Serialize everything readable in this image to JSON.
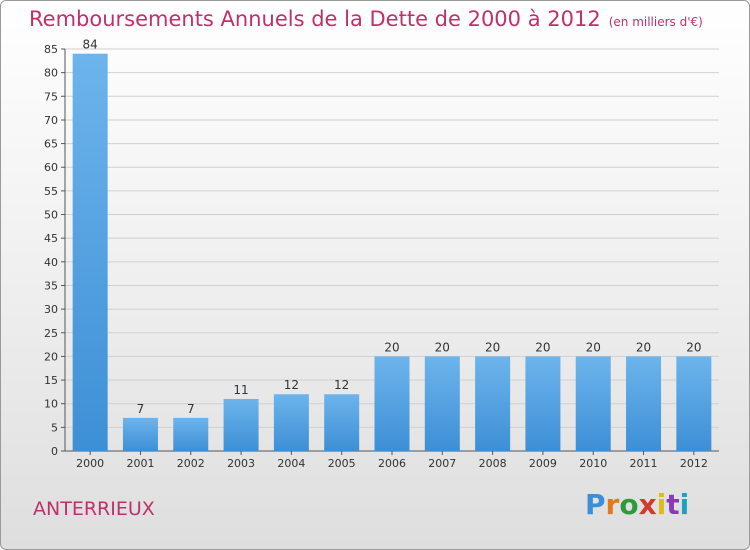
{
  "chart_data": {
    "type": "bar",
    "title": "Remboursements Annuels de la Dette de 2000 à 2012",
    "unit_note": "(en milliers d'€)",
    "categories": [
      "2000",
      "2001",
      "2002",
      "2003",
      "2004",
      "2005",
      "2006",
      "2007",
      "2008",
      "2009",
      "2010",
      "2011",
      "2012"
    ],
    "values": [
      84,
      7,
      7,
      11,
      12,
      12,
      20,
      20,
      20,
      20,
      20,
      20,
      20
    ],
    "data_labels": [
      "84",
      "7",
      "7",
      "11",
      "12",
      "12",
      "20",
      "20",
      "20",
      "20",
      "20",
      "20",
      "20"
    ],
    "ylim": [
      0,
      85
    ],
    "yticks": [
      0,
      5,
      10,
      15,
      20,
      25,
      30,
      35,
      40,
      45,
      50,
      55,
      60,
      65,
      70,
      75,
      80,
      85
    ],
    "ytick_labels": [
      "0",
      "5",
      "10",
      "15",
      "20",
      "25",
      "30",
      "35",
      "40",
      "45",
      "50",
      "55",
      "60",
      "65",
      "70",
      "75",
      "80",
      "85"
    ],
    "xlabel": "",
    "ylabel": "",
    "grid": true,
    "bar_color": "#3d8fd6",
    "bar_color_light": "#6db4ec"
  },
  "footer": {
    "commune": "ANTERRIEUX",
    "logo_text": "Proxiti",
    "logo_colors": [
      "#3a8fd8",
      "#e07a1f",
      "#2f9a3a",
      "#d23a2a",
      "#e0b91f",
      "#8a3ab8",
      "#1fa0c0"
    ]
  }
}
